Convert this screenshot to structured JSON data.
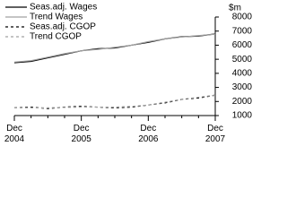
{
  "chart_data": {
    "type": "line",
    "y_label": "$m",
    "categories": [
      "Dec 2004",
      null,
      null,
      null,
      "Dec 2005",
      null,
      null,
      null,
      "Dec 2006",
      null,
      null,
      null,
      "Dec 2007"
    ],
    "series": [
      {
        "name": "Seas.adj. Wages",
        "color": "#000000",
        "dashed": false,
        "values": [
          4750,
          4850,
          5100,
          5350,
          5600,
          5750,
          5800,
          6000,
          6200,
          6450,
          6600,
          6650,
          6800
        ]
      },
      {
        "name": "Trend Wages",
        "color": "#a0a0a0",
        "dashed": false,
        "values": [
          4800,
          4900,
          5150,
          5400,
          5600,
          5700,
          5850,
          6000,
          6250,
          6450,
          6580,
          6680,
          6780
        ]
      },
      {
        "name": "Seas.adj. CGOP",
        "color": "#000000",
        "dashed": true,
        "values": [
          1550,
          1600,
          1500,
          1600,
          1650,
          1600,
          1550,
          1600,
          1750,
          1900,
          2150,
          2250,
          2450
        ]
      },
      {
        "name": "Trend CGOP",
        "color": "#a0a0a0",
        "dashed": true,
        "values": [
          1550,
          1550,
          1550,
          1580,
          1600,
          1600,
          1600,
          1650,
          1750,
          1950,
          2150,
          2300,
          2450
        ]
      }
    ],
    "ylim": [
      1000,
      8000
    ],
    "yticks": [
      1000,
      2000,
      3000,
      4000,
      5000,
      6000,
      7000,
      8000
    ],
    "legend": "top-left"
  }
}
